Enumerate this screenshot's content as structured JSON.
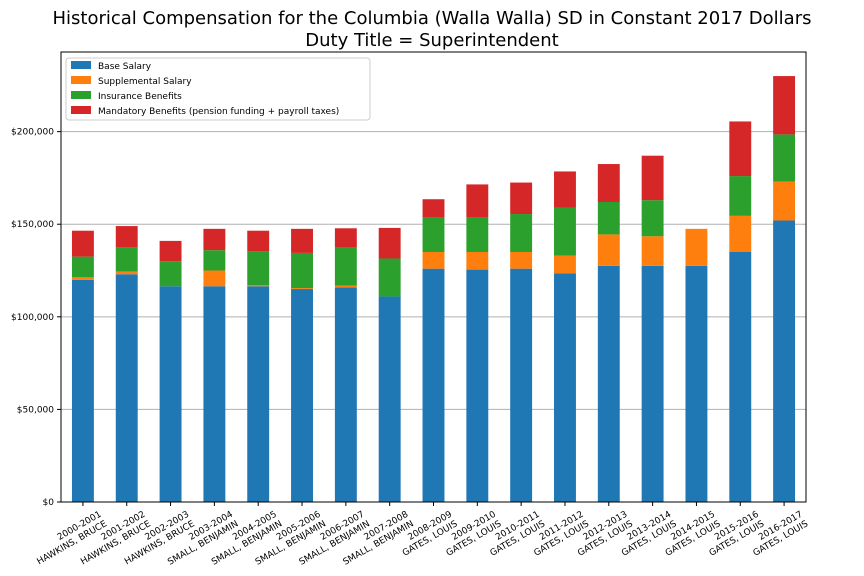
{
  "chart_data": {
    "type": "bar",
    "stacked": true,
    "title": "Historical Compensation for the Columbia (Walla Walla) SD in Constant 2017 Dollars",
    "subtitle": "Duty Title = Superintendent",
    "xlabel": "",
    "ylabel": "",
    "ylim": [
      0,
      243000
    ],
    "yticks": [
      0,
      50000,
      100000,
      150000,
      200000
    ],
    "ytick_labels": [
      "$0",
      "$50,000",
      "$100,000",
      "$150,000",
      "$200,000"
    ],
    "grid": "horizontal",
    "legend_position": "top-left",
    "categories": [
      "2000-2001\nHAWKINS, BRUCE",
      "2001-2002\nHAWKINS, BRUCE",
      "2002-2003\nHAWKINS, BRUCE",
      "2003-2004\nSMALL, BENJAMIN",
      "2004-2005\nSMALL, BENJAMIN",
      "2005-2006\nSMALL, BENJAMIN",
      "2006-2007\nSMALL, BENJAMIN",
      "2007-2008\nSMALL, BENJAMIN",
      "2008-2009\nGATES, LOUIS",
      "2009-2010\nGATES, LOUIS",
      "2010-2011\nGATES, LOUIS",
      "2011-2012\nGATES, LOUIS",
      "2012-2013\nGATES, LOUIS",
      "2013-2014\nGATES, LOUIS",
      "2014-2015\nGATES, LOUIS",
      "2015-2016\nGATES, LOUIS",
      "2016-2017\nGATES, LOUIS"
    ],
    "series": [
      {
        "name": "Base Salary",
        "color": "#1f77b4",
        "values": [
          120000,
          123000,
          116500,
          116500,
          116500,
          115000,
          115800,
          111000,
          126000,
          125500,
          126000,
          123500,
          127500,
          127500,
          127500,
          135000,
          152000
        ]
      },
      {
        "name": "Supplemental Salary",
        "color": "#ff7f0e",
        "values": [
          1500,
          1500,
          0,
          8500,
          500,
          500,
          1000,
          0,
          9000,
          9500,
          9000,
          9500,
          17000,
          16000,
          20000,
          19500,
          21000
        ]
      },
      {
        "name": "Insurance Benefits",
        "color": "#2ca02c",
        "values": [
          11000,
          13000,
          13500,
          11000,
          18500,
          19000,
          20500,
          20500,
          18500,
          18500,
          20500,
          26000,
          17500,
          19500,
          0,
          21500,
          25500
        ]
      },
      {
        "name": "Mandatory Benefits (pension funding + payroll taxes)",
        "color": "#d62728",
        "values": [
          14000,
          11500,
          11000,
          11500,
          11000,
          13000,
          10500,
          16500,
          10000,
          18000,
          17000,
          19500,
          20500,
          24000,
          0,
          29500,
          31500
        ]
      }
    ]
  }
}
